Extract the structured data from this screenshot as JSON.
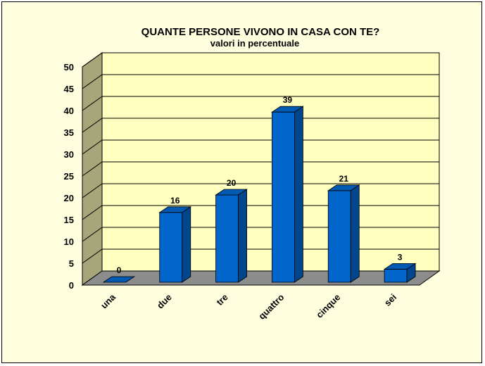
{
  "chart_data": {
    "type": "bar",
    "title": "QUANTE PERSONE VIVONO IN CASA CON TE?",
    "subtitle": "valori in percentuale",
    "categories": [
      "una",
      "due",
      "tre",
      "quattro",
      "cinque",
      "sei"
    ],
    "values": [
      0,
      16,
      20,
      39,
      21,
      3
    ],
    "yticks": [
      "0",
      "5",
      "10",
      "15",
      "20",
      "25",
      "30",
      "35",
      "40",
      "45",
      "50"
    ],
    "ylim": [
      0,
      50
    ],
    "grid": true,
    "legend": "none",
    "colors": {
      "bar_front": "#0066cc",
      "bar_side": "#00468c",
      "bar_top": "#0059b3",
      "wall": "#ffffc0",
      "side_wall": "#a6a67a",
      "floor": "#8c8c8c",
      "frame": "#ffffe0"
    }
  }
}
